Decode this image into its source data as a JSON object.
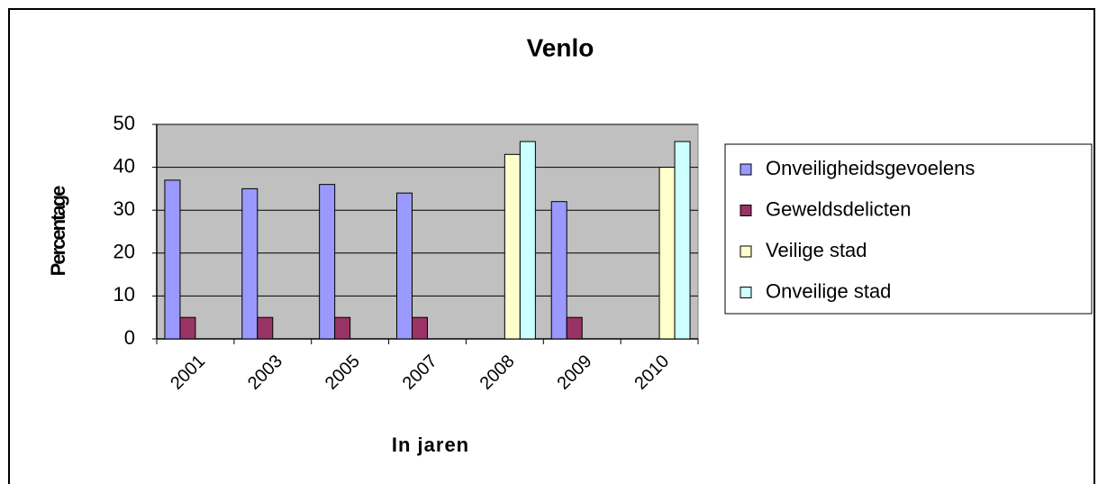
{
  "chart_data": {
    "type": "bar",
    "title": "Venlo",
    "x_label": "In jaren",
    "y_label": "Percentage",
    "categories": [
      "2001",
      "2003",
      "2005",
      "2007",
      "2008",
      "2009",
      "2010"
    ],
    "series": [
      {
        "name": "Onveiligheidsgevoelens",
        "color": "#9999ff",
        "values": [
          37,
          35,
          36,
          34,
          null,
          32,
          null
        ]
      },
      {
        "name": "Geweldsdelicten",
        "color": "#993366",
        "values": [
          5,
          5,
          5,
          5,
          null,
          5,
          null
        ]
      },
      {
        "name": "Veilige stad",
        "color": "#ffffcc",
        "values": [
          null,
          null,
          null,
          null,
          43,
          null,
          40
        ]
      },
      {
        "name": "Onveilige stad",
        "color": "#ccffff",
        "values": [
          null,
          null,
          null,
          null,
          46,
          null,
          46
        ]
      }
    ],
    "ylim": [
      0,
      50
    ],
    "yticks": [
      0,
      10,
      20,
      30,
      40,
      50
    ],
    "grid": true,
    "legend": "right"
  }
}
